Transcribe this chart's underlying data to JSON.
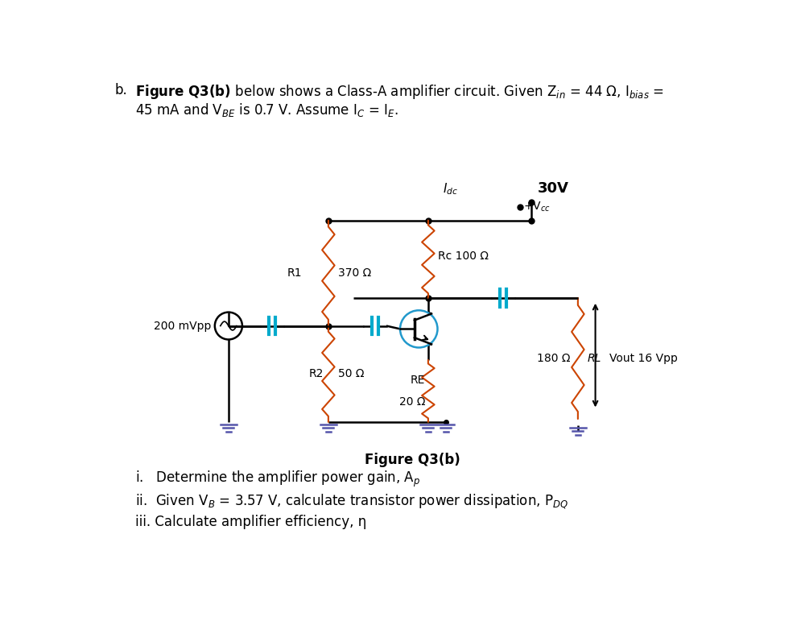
{
  "bg_color": "#ffffff",
  "title_text": "Figure Q3(b)",
  "vcc_val": "30V",
  "vcc_node": "+Vcc",
  "idc_label": "Idc",
  "R1_label": "R1",
  "R1_val": "370 Ω",
  "Rc_label": "Rc 100 Ω",
  "R2_label": "R2",
  "R2_val": "50 Ω",
  "RE_label": "RE",
  "RE_val": "20 Ω",
  "RL_val": "180 Ω",
  "RL_label": "RL",
  "vout_label": "Vout 16 Vpp",
  "vin_label": "200 mVpp",
  "omega": "Ω",
  "eta": "η"
}
